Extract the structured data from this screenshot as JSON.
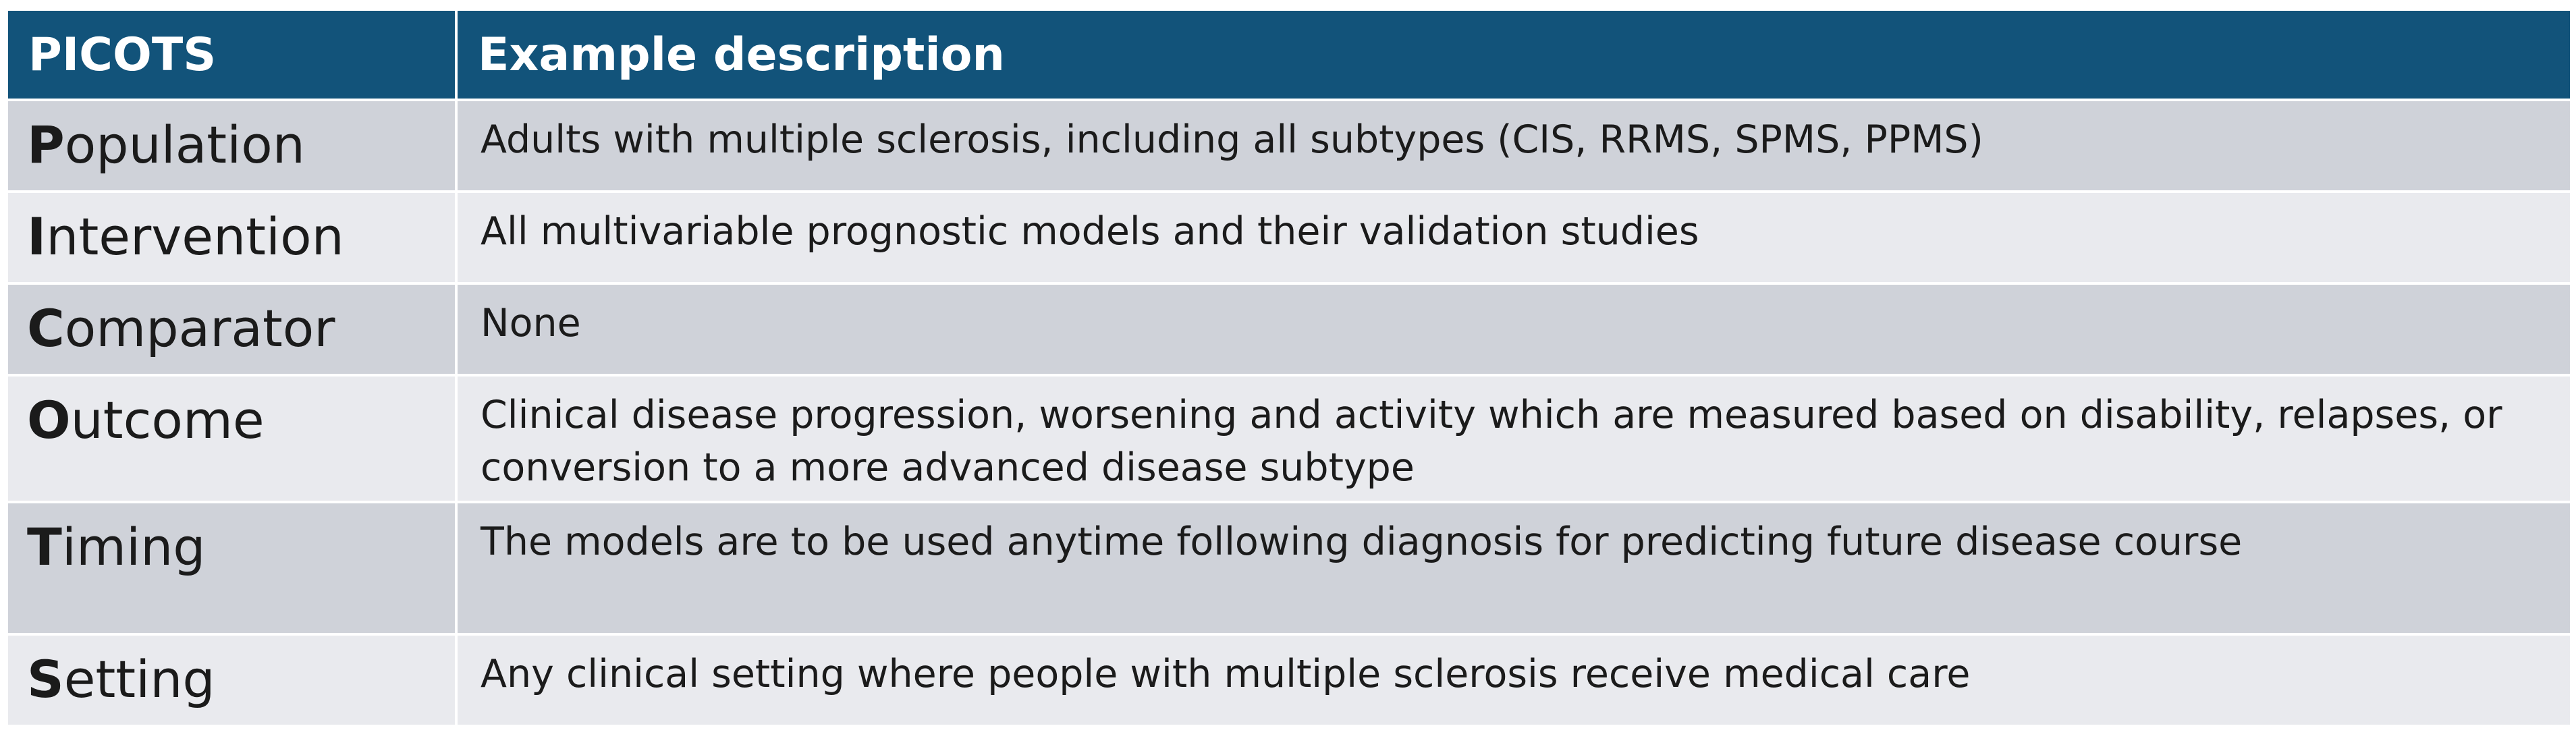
{
  "table": {
    "headers": [
      "PICOTS",
      "Example description"
    ],
    "rows": [
      {
        "initial": "P",
        "rest": "opulation",
        "description": "Adults with multiple sclerosis, including all subtypes (CIS, RRMS, SPMS, PPMS)"
      },
      {
        "initial": "I",
        "rest": "ntervention",
        "description": "All multivariable prognostic models and their validation studies"
      },
      {
        "initial": "C",
        "rest": "omparator",
        "description": "None"
      },
      {
        "initial": "O",
        "rest": "utcome",
        "description": "Clinical disease progression, worsening and activity which are measured based on disability, relapses, or conversion to a more advanced disease subtype"
      },
      {
        "initial": "T",
        "rest": "iming",
        "description": "The models are to be used anytime following diagnosis for predicting future disease course"
      },
      {
        "initial": "S",
        "rest": "etting",
        "description": "Any clinical setting where people with multiple sclerosis receive medical care"
      }
    ]
  },
  "colors": {
    "header_background": "#12537a",
    "header_text": "#ffffff",
    "row_dark": "#cfd2d9",
    "row_light": "#e9eaee"
  }
}
